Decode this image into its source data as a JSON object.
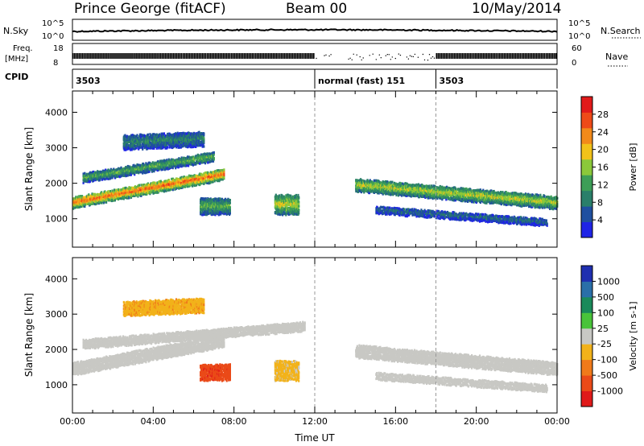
{
  "header": {
    "station": "Prince George (fitACF)",
    "beam": "Beam 00",
    "date": "10/May/2014"
  },
  "strip_labels": {
    "nsky": "N.Sky",
    "nsky_hi": "10^5",
    "nsky_lo": "10^0",
    "nsearch": "N.Search",
    "nsearch_hi": "10^5",
    "nsearch_lo": "10^0",
    "freq_line1": "Freq.",
    "freq_line2": "[MHz]",
    "freq_hi": "18",
    "freq_lo": "8",
    "nave": "Nave",
    "nave_hi": "60",
    "nave_lo": "0",
    "cpid": "CPID"
  },
  "cpid_segments": [
    {
      "label": "3503",
      "start_hour": 0
    },
    {
      "label": "normal (fast) 151",
      "start_hour": 12
    },
    {
      "label": "3503",
      "start_hour": 18
    }
  ],
  "colors": {
    "power_scale": [
      "#1f24e6",
      "#1f4fa0",
      "#2a7f6a",
      "#3d9e57",
      "#8bc83a",
      "#f2c21a",
      "#f28a1a",
      "#ee4a18",
      "#e11a1a"
    ],
    "velocity_scale": [
      "#1f2fb0",
      "#2a6fa8",
      "#1a8a5a",
      "#49c43a",
      "#c8c8c4",
      "#f2b21a",
      "#f07a1a",
      "#ea4a18",
      "#e01a1a"
    ],
    "ground_scatter": "#c8c8c4"
  },
  "chart_data": [
    {
      "type": "heatmap",
      "title": "Power",
      "xlabel": "",
      "ylabel": "Slant Range [km]",
      "x_ticks": [
        "00:00",
        "04:00",
        "08:00",
        "12:00",
        "16:00",
        "20:00",
        "00:00"
      ],
      "y_ticks": [
        1000,
        2000,
        3000,
        4000
      ],
      "xlim": [
        0,
        24
      ],
      "ylim": [
        200,
        4600
      ],
      "colorbar": {
        "label": "Power [dB]",
        "ticks": [
          4,
          8,
          12,
          16,
          20,
          24,
          28
        ]
      },
      "cpid_markers_hour": [
        12,
        18
      ],
      "echo_bands": [
        {
          "start_hour": 0.0,
          "end_hour": 7.5,
          "start_km": 1500,
          "end_km": 2300,
          "width_km": 300,
          "db": 26
        },
        {
          "start_hour": 0.5,
          "end_hour": 7.0,
          "start_km": 2200,
          "end_km": 2800,
          "width_km": 250,
          "db": 14
        },
        {
          "start_hour": 2.5,
          "end_hour": 6.5,
          "start_km": 3200,
          "end_km": 3300,
          "width_km": 400,
          "db": 10
        },
        {
          "start_hour": 6.3,
          "end_hour": 7.8,
          "start_km": 1400,
          "end_km": 1400,
          "width_km": 450,
          "db": 14
        },
        {
          "start_hour": 10.0,
          "end_hour": 11.2,
          "start_km": 1450,
          "end_km": 1450,
          "width_km": 550,
          "db": 18
        },
        {
          "start_hour": 14.0,
          "end_hour": 24.0,
          "start_km": 2000,
          "end_km": 1500,
          "width_km": 350,
          "db": 18
        },
        {
          "start_hour": 15.0,
          "end_hour": 23.5,
          "start_km": 1300,
          "end_km": 950,
          "width_km": 200,
          "db": 8
        }
      ]
    },
    {
      "type": "heatmap",
      "title": "Velocity",
      "xlabel": "Time UT",
      "ylabel": "Slant Range [km]",
      "x_ticks": [
        "00:00",
        "04:00",
        "08:00",
        "12:00",
        "16:00",
        "20:00",
        "00:00"
      ],
      "y_ticks": [
        1000,
        2000,
        3000,
        4000
      ],
      "xlim": [
        0,
        24
      ],
      "ylim": [
        200,
        4600
      ],
      "colorbar": {
        "label": "Velocity [m s-1]",
        "ticks": [
          1000,
          500,
          100,
          25,
          -25,
          -100,
          -500,
          -1000
        ]
      },
      "cpid_markers_hour": [
        12,
        18
      ],
      "echo_bands": [
        {
          "start_hour": 0.0,
          "end_hour": 7.5,
          "start_km": 1500,
          "end_km": 2300,
          "width_km": 350,
          "v": 0
        },
        {
          "start_hour": 0.5,
          "end_hour": 11.5,
          "start_km": 2200,
          "end_km": 2700,
          "width_km": 250,
          "v": 0
        },
        {
          "start_hour": 2.5,
          "end_hour": 6.5,
          "start_km": 3200,
          "end_km": 3300,
          "width_km": 400,
          "v": -300
        },
        {
          "start_hour": 6.3,
          "end_hour": 7.8,
          "start_km": 1400,
          "end_km": 1400,
          "width_km": 450,
          "v": -800
        },
        {
          "start_hour": 10.0,
          "end_hour": 11.2,
          "start_km": 1450,
          "end_km": 1450,
          "width_km": 550,
          "v": -200
        },
        {
          "start_hour": 14.0,
          "end_hour": 24.0,
          "start_km": 2000,
          "end_km": 1500,
          "width_km": 350,
          "v": 0
        },
        {
          "start_hour": 15.0,
          "end_hour": 23.5,
          "start_km": 1300,
          "end_km": 950,
          "width_km": 200,
          "v": 0
        }
      ]
    }
  ]
}
